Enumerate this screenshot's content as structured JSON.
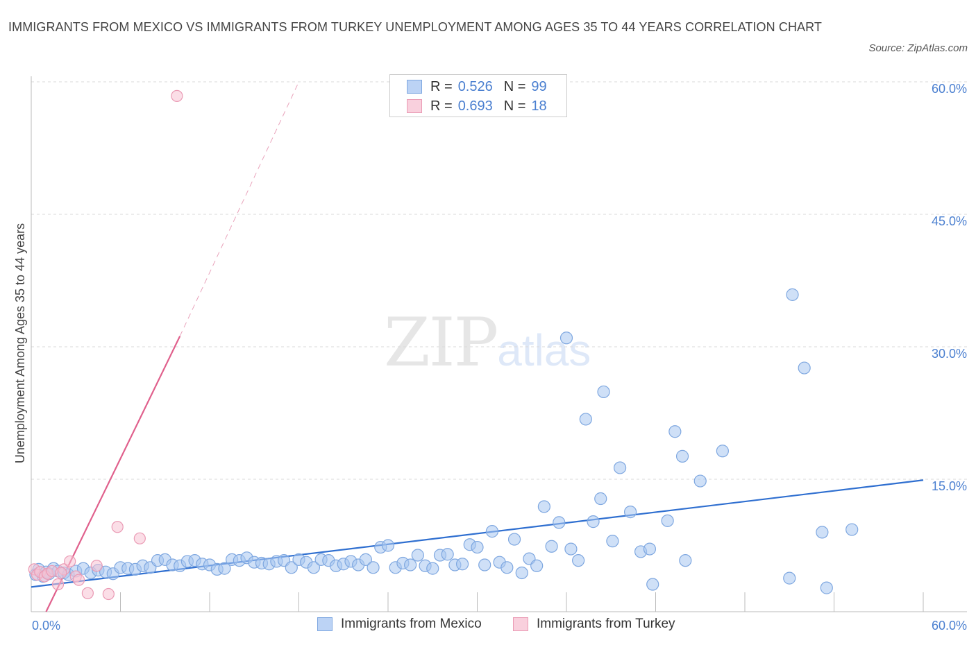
{
  "header": {
    "title": "IMMIGRANTS FROM MEXICO VS IMMIGRANTS FROM TURKEY UNEMPLOYMENT AMONG AGES 35 TO 44 YEARS CORRELATION CHART",
    "source": "Source: ZipAtlas.com"
  },
  "watermark": {
    "zip": "ZIP",
    "atlas": "atlas"
  },
  "legend": {
    "rows": [
      {
        "r_label": "R =",
        "r_value": "0.526",
        "n_label": "N =",
        "n_value": "99",
        "color": "#a8c6f0",
        "border": "#7ea7e0"
      },
      {
        "r_label": "R =",
        "r_value": "0.693",
        "n_label": "N =",
        "n_value": "18",
        "color": "#f7c3d3",
        "border": "#ea9ab4"
      }
    ]
  },
  "bottom_legend": {
    "mexico": "Immigrants from Mexico",
    "turkey": "Immigrants from Turkey"
  },
  "colors": {
    "mexico_fill": "rgba(168,198,240,0.55)",
    "mexico_stroke": "#7ea7e0",
    "mexico_line": "#2f6fd0",
    "turkey_fill": "rgba(247,195,211,0.55)",
    "turkey_stroke": "#ea9ab4",
    "turkey_line": "#e0608c",
    "grid": "#d9d9d9",
    "tick_text": "#4a7fd0"
  },
  "chart_data": {
    "type": "scatter",
    "title": "IMMIGRANTS FROM MEXICO VS IMMIGRANTS FROM TURKEY UNEMPLOYMENT AMONG AGES 35 TO 44 YEARS CORRELATION CHART",
    "xlabel": "",
    "ylabel": "Unemployment Among Ages 35 to 44 years",
    "xlim": [
      0,
      60
    ],
    "ylim": [
      0,
      60
    ],
    "x_ticks_labeled": [
      "0.0%",
      "60.0%"
    ],
    "y_ticks": [
      15,
      30,
      45,
      60
    ],
    "y_tick_labels": [
      "15.0%",
      "30.0%",
      "45.0%",
      "60.0%"
    ],
    "grid": true,
    "legend_position": "top-center",
    "series": [
      {
        "name": "Immigrants from Mexico",
        "R": 0.526,
        "N": 99,
        "trend": {
          "x": [
            0,
            60
          ],
          "y": [
            2.8,
            14.9
          ]
        },
        "points": [
          [
            0.3,
            4.2
          ],
          [
            0.5,
            4.8
          ],
          [
            0.8,
            4.0
          ],
          [
            1.0,
            4.5
          ],
          [
            1.2,
            4.3
          ],
          [
            1.5,
            4.9
          ],
          [
            1.8,
            4.6
          ],
          [
            2.2,
            4.4
          ],
          [
            2.5,
            4.2
          ],
          [
            3.0,
            4.6
          ],
          [
            3.5,
            4.9
          ],
          [
            4.0,
            4.4
          ],
          [
            4.5,
            4.7
          ],
          [
            5.0,
            4.5
          ],
          [
            5.5,
            4.3
          ],
          [
            6.0,
            5.0
          ],
          [
            6.5,
            4.9
          ],
          [
            7.0,
            4.8
          ],
          [
            7.5,
            5.2
          ],
          [
            8.0,
            5.0
          ],
          [
            8.5,
            5.8
          ],
          [
            9.0,
            5.9
          ],
          [
            9.5,
            5.3
          ],
          [
            10.0,
            5.2
          ],
          [
            10.5,
            5.7
          ],
          [
            11.0,
            5.8
          ],
          [
            11.5,
            5.4
          ],
          [
            12.0,
            5.3
          ],
          [
            12.5,
            4.8
          ],
          [
            13.0,
            4.9
          ],
          [
            13.5,
            5.9
          ],
          [
            14.0,
            5.8
          ],
          [
            14.5,
            6.1
          ],
          [
            15.0,
            5.6
          ],
          [
            15.5,
            5.5
          ],
          [
            16.0,
            5.4
          ],
          [
            16.5,
            5.7
          ],
          [
            17.0,
            5.8
          ],
          [
            17.5,
            5.0
          ],
          [
            18.0,
            5.9
          ],
          [
            18.5,
            5.6
          ],
          [
            19.0,
            5.0
          ],
          [
            19.5,
            5.9
          ],
          [
            20.0,
            5.8
          ],
          [
            20.5,
            5.2
          ],
          [
            21.0,
            5.4
          ],
          [
            21.5,
            5.7
          ],
          [
            22.0,
            5.3
          ],
          [
            22.5,
            5.9
          ],
          [
            23.0,
            5.0
          ],
          [
            23.5,
            7.3
          ],
          [
            24.0,
            7.5
          ],
          [
            24.5,
            5.0
          ],
          [
            25.0,
            5.5
          ],
          [
            25.5,
            5.3
          ],
          [
            26.0,
            6.4
          ],
          [
            26.5,
            5.2
          ],
          [
            27.0,
            4.9
          ],
          [
            27.5,
            6.4
          ],
          [
            28.0,
            6.5
          ],
          [
            28.5,
            5.3
          ],
          [
            29.0,
            5.4
          ],
          [
            29.5,
            7.6
          ],
          [
            30.0,
            7.3
          ],
          [
            30.5,
            5.3
          ],
          [
            31.0,
            9.1
          ],
          [
            31.5,
            5.6
          ],
          [
            32.0,
            5.0
          ],
          [
            32.5,
            8.2
          ],
          [
            33.0,
            4.4
          ],
          [
            33.5,
            6.0
          ],
          [
            34.0,
            5.2
          ],
          [
            34.5,
            11.9
          ],
          [
            35.0,
            7.4
          ],
          [
            35.5,
            10.1
          ],
          [
            36.0,
            31.0
          ],
          [
            36.3,
            7.1
          ],
          [
            36.8,
            5.8
          ],
          [
            37.3,
            21.8
          ],
          [
            37.8,
            10.2
          ],
          [
            38.5,
            24.9
          ],
          [
            38.3,
            12.8
          ],
          [
            39.1,
            8.0
          ],
          [
            39.6,
            16.3
          ],
          [
            40.3,
            11.3
          ],
          [
            41.0,
            6.8
          ],
          [
            41.6,
            7.1
          ],
          [
            41.8,
            3.1
          ],
          [
            42.8,
            10.3
          ],
          [
            43.3,
            20.4
          ],
          [
            43.8,
            17.6
          ],
          [
            44.0,
            5.8
          ],
          [
            45.0,
            14.8
          ],
          [
            46.5,
            18.2
          ],
          [
            51.0,
            3.8
          ],
          [
            51.2,
            35.9
          ],
          [
            52.0,
            27.6
          ],
          [
            53.2,
            9.0
          ],
          [
            53.5,
            2.7
          ],
          [
            55.2,
            9.3
          ]
        ]
      },
      {
        "name": "Immigrants from Turkey",
        "R": 0.693,
        "N": 18,
        "trend_solid": {
          "x": [
            1.0,
            10.0
          ],
          "y": [
            0.0,
            31.2
          ]
        },
        "trend_dashed": {
          "x": [
            10.0,
            18.0
          ],
          "y": [
            31.2,
            60.0
          ]
        },
        "points": [
          [
            0.2,
            4.8
          ],
          [
            0.4,
            4.2
          ],
          [
            0.6,
            4.5
          ],
          [
            0.9,
            4.0
          ],
          [
            1.1,
            4.3
          ],
          [
            1.4,
            4.6
          ],
          [
            1.8,
            3.1
          ],
          [
            2.2,
            4.8
          ],
          [
            2.6,
            5.7
          ],
          [
            3.0,
            4.0
          ],
          [
            3.2,
            3.6
          ],
          [
            3.8,
            2.1
          ],
          [
            4.4,
            5.2
          ],
          [
            5.2,
            2.0
          ],
          [
            5.8,
            9.6
          ],
          [
            7.3,
            8.3
          ],
          [
            9.8,
            58.4
          ],
          [
            2.0,
            4.4
          ]
        ]
      }
    ]
  }
}
